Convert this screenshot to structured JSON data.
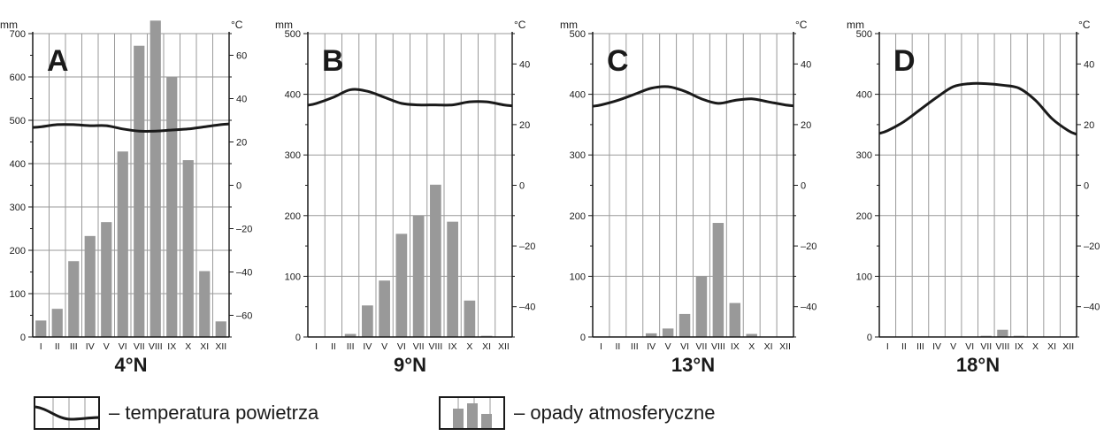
{
  "months": [
    "I",
    "II",
    "III",
    "IV",
    "V",
    "VI",
    "VII",
    "VIII",
    "IX",
    "X",
    "XI",
    "XII"
  ],
  "units": {
    "left": "mm",
    "right": "°C"
  },
  "legend": {
    "temperature": "– temperatura powietrza",
    "precipitation": "– opady atmosferyczne"
  },
  "colors": {
    "bars": "#999999",
    "line": "#1a1a1a",
    "grid": "#9a9a9a"
  },
  "chart_data": [
    {
      "type": "bar+line",
      "letter": "A",
      "latitude": "4°N",
      "precip_ylim": [
        0,
        700
      ],
      "precip_ticks": [
        0,
        100,
        200,
        300,
        400,
        500,
        600,
        700
      ],
      "temp_ylim": [
        -70,
        70
      ],
      "temp_ticks": [
        -60,
        -40,
        -20,
        0,
        20,
        40,
        60
      ],
      "precipitation": [
        38,
        65,
        175,
        233,
        265,
        428,
        672,
        730,
        600,
        408,
        152,
        36
      ],
      "temperature": [
        27,
        28,
        28,
        27.5,
        27.5,
        26,
        25,
        25,
        25.5,
        26,
        27,
        28
      ]
    },
    {
      "type": "bar+line",
      "letter": "B",
      "latitude": "9°N",
      "precip_ylim": [
        0,
        500
      ],
      "precip_ticks": [
        0,
        100,
        200,
        300,
        400,
        500
      ],
      "temp_ylim": [
        -50,
        50
      ],
      "temp_ticks": [
        -40,
        -20,
        0,
        20,
        40
      ],
      "precipitation": [
        0,
        0,
        5,
        52,
        93,
        170,
        200,
        251,
        190,
        60,
        2,
        0
      ],
      "temperature": [
        27,
        29,
        31.5,
        31,
        29,
        27,
        26.5,
        26.5,
        26.5,
        27.5,
        27.5,
        26.5
      ]
    },
    {
      "type": "bar+line",
      "letter": "C",
      "latitude": "13°N",
      "precip_ylim": [
        0,
        500
      ],
      "precip_ticks": [
        0,
        100,
        200,
        300,
        400,
        500
      ],
      "temp_ylim": [
        -50,
        50
      ],
      "temp_ticks": [
        -40,
        -20,
        0,
        20,
        40
      ],
      "precipitation": [
        0,
        0,
        0,
        6,
        14,
        38,
        100,
        188,
        56,
        5,
        0,
        0
      ],
      "temperature": [
        26.5,
        28,
        30,
        32,
        32.5,
        31,
        28.5,
        27,
        28,
        28.5,
        27.5,
        26.5
      ]
    },
    {
      "type": "bar+line",
      "letter": "D",
      "latitude": "18°N",
      "precip_ylim": [
        0,
        500
      ],
      "precip_ticks": [
        0,
        100,
        200,
        300,
        400,
        500
      ],
      "temp_ylim": [
        -50,
        50
      ],
      "temp_ticks": [
        -40,
        -20,
        0,
        20,
        40
      ],
      "precipitation": [
        0,
        0,
        0,
        0,
        0,
        0,
        2,
        12,
        2,
        0,
        0,
        0
      ],
      "temperature": [
        18,
        21,
        25,
        29,
        32.5,
        33.5,
        33.5,
        33,
        32,
        28,
        22,
        18
      ]
    }
  ]
}
